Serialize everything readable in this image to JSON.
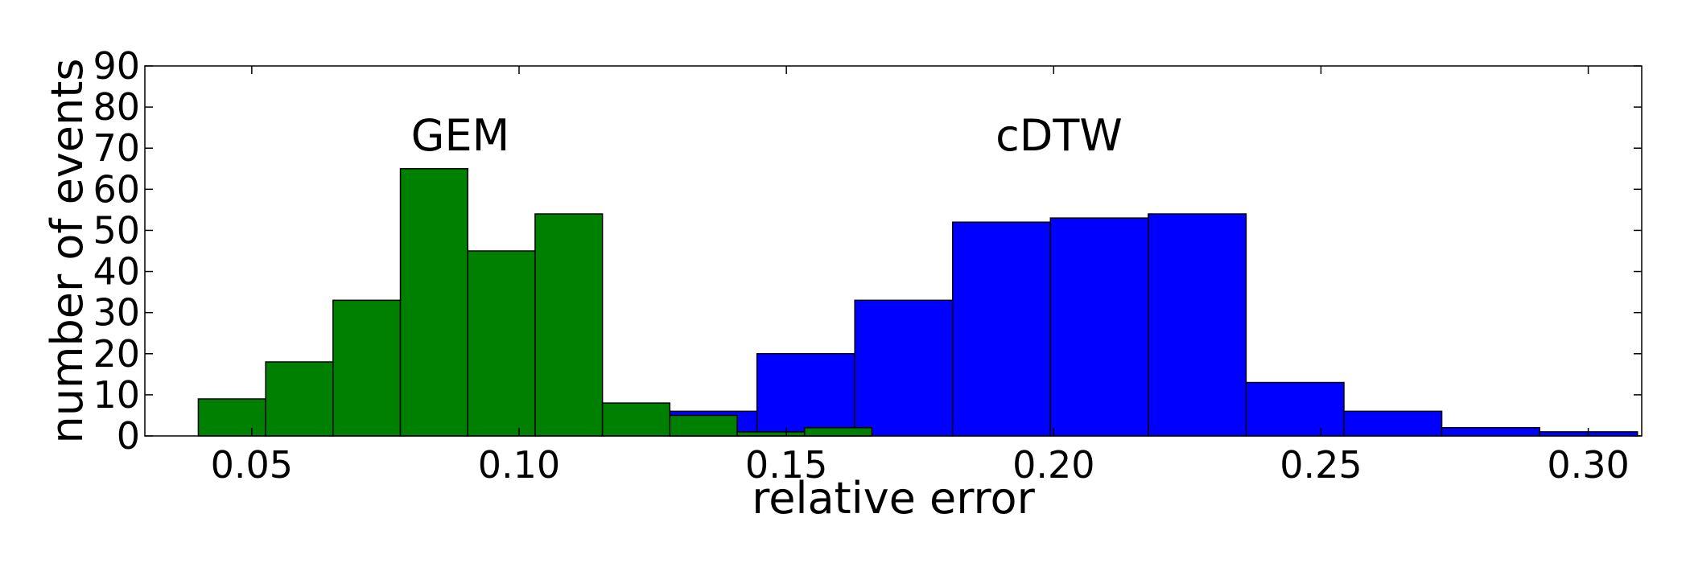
{
  "chart_data": {
    "type": "bar",
    "xlabel": "relative error",
    "ylabel": "number of events",
    "xlim": [
      0.03,
      0.31
    ],
    "ylim": [
      0,
      90
    ],
    "xticks": [
      "0.05",
      "0.10",
      "0.15",
      "0.20",
      "0.25",
      "0.30"
    ],
    "yticks": [
      "0",
      "10",
      "20",
      "30",
      "40",
      "50",
      "60",
      "70",
      "80",
      "90"
    ],
    "grid": false,
    "annotations": [
      {
        "text": "GEM",
        "x": 0.089,
        "y": 73
      },
      {
        "text": "cDTW",
        "x": 0.201,
        "y": 73
      }
    ],
    "series": [
      {
        "label": "cDTW",
        "color": "#0000ff",
        "bins": [
          {
            "x0": 0.128,
            "x1": 0.1445,
            "value": 6
          },
          {
            "x0": 0.1445,
            "x1": 0.1628,
            "value": 20
          },
          {
            "x0": 0.1628,
            "x1": 0.1811,
            "value": 33
          },
          {
            "x0": 0.1811,
            "x1": 0.1994,
            "value": 52
          },
          {
            "x0": 0.1994,
            "x1": 0.2177,
            "value": 53
          },
          {
            "x0": 0.2177,
            "x1": 0.236,
            "value": 54
          },
          {
            "x0": 0.236,
            "x1": 0.2543,
            "value": 13
          },
          {
            "x0": 0.2543,
            "x1": 0.2726,
            "value": 6
          },
          {
            "x0": 0.2726,
            "x1": 0.2909,
            "value": 2
          },
          {
            "x0": 0.2909,
            "x1": 0.3092,
            "value": 1
          }
        ]
      },
      {
        "label": "GEM",
        "color": "#008000",
        "bins": [
          {
            "x0": 0.04,
            "x1": 0.0526,
            "value": 9
          },
          {
            "x0": 0.0526,
            "x1": 0.0652,
            "value": 18
          },
          {
            "x0": 0.0652,
            "x1": 0.0778,
            "value": 33
          },
          {
            "x0": 0.0778,
            "x1": 0.0904,
            "value": 65
          },
          {
            "x0": 0.0904,
            "x1": 0.103,
            "value": 45
          },
          {
            "x0": 0.103,
            "x1": 0.1156,
            "value": 54
          },
          {
            "x0": 0.1156,
            "x1": 0.1282,
            "value": 8
          },
          {
            "x0": 0.1282,
            "x1": 0.1408,
            "value": 5
          },
          {
            "x0": 0.1408,
            "x1": 0.1534,
            "value": 1
          },
          {
            "x0": 0.1534,
            "x1": 0.166,
            "value": 2
          }
        ]
      }
    ]
  }
}
